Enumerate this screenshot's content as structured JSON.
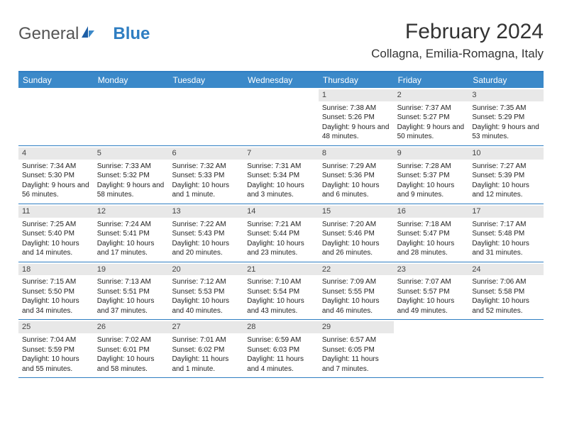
{
  "logo": {
    "general": "General",
    "blue": "Blue"
  },
  "title": "February 2024",
  "location": "Collagna, Emilia-Romagna, Italy",
  "colors": {
    "brand_blue": "#3b89c9",
    "border_blue": "#2f7ec2",
    "header_text": "#ffffff",
    "date_bg": "#e8e8e8",
    "body_text": "#222222"
  },
  "day_names": [
    "Sunday",
    "Monday",
    "Tuesday",
    "Wednesday",
    "Thursday",
    "Friday",
    "Saturday"
  ],
  "weeks": [
    [
      null,
      null,
      null,
      null,
      {
        "d": "1",
        "sr": "Sunrise: 7:38 AM",
        "ss": "Sunset: 5:26 PM",
        "dl": "Daylight: 9 hours and 48 minutes."
      },
      {
        "d": "2",
        "sr": "Sunrise: 7:37 AM",
        "ss": "Sunset: 5:27 PM",
        "dl": "Daylight: 9 hours and 50 minutes."
      },
      {
        "d": "3",
        "sr": "Sunrise: 7:35 AM",
        "ss": "Sunset: 5:29 PM",
        "dl": "Daylight: 9 hours and 53 minutes."
      }
    ],
    [
      {
        "d": "4",
        "sr": "Sunrise: 7:34 AM",
        "ss": "Sunset: 5:30 PM",
        "dl": "Daylight: 9 hours and 56 minutes."
      },
      {
        "d": "5",
        "sr": "Sunrise: 7:33 AM",
        "ss": "Sunset: 5:32 PM",
        "dl": "Daylight: 9 hours and 58 minutes."
      },
      {
        "d": "6",
        "sr": "Sunrise: 7:32 AM",
        "ss": "Sunset: 5:33 PM",
        "dl": "Daylight: 10 hours and 1 minute."
      },
      {
        "d": "7",
        "sr": "Sunrise: 7:31 AM",
        "ss": "Sunset: 5:34 PM",
        "dl": "Daylight: 10 hours and 3 minutes."
      },
      {
        "d": "8",
        "sr": "Sunrise: 7:29 AM",
        "ss": "Sunset: 5:36 PM",
        "dl": "Daylight: 10 hours and 6 minutes."
      },
      {
        "d": "9",
        "sr": "Sunrise: 7:28 AM",
        "ss": "Sunset: 5:37 PM",
        "dl": "Daylight: 10 hours and 9 minutes."
      },
      {
        "d": "10",
        "sr": "Sunrise: 7:27 AM",
        "ss": "Sunset: 5:39 PM",
        "dl": "Daylight: 10 hours and 12 minutes."
      }
    ],
    [
      {
        "d": "11",
        "sr": "Sunrise: 7:25 AM",
        "ss": "Sunset: 5:40 PM",
        "dl": "Daylight: 10 hours and 14 minutes."
      },
      {
        "d": "12",
        "sr": "Sunrise: 7:24 AM",
        "ss": "Sunset: 5:41 PM",
        "dl": "Daylight: 10 hours and 17 minutes."
      },
      {
        "d": "13",
        "sr": "Sunrise: 7:22 AM",
        "ss": "Sunset: 5:43 PM",
        "dl": "Daylight: 10 hours and 20 minutes."
      },
      {
        "d": "14",
        "sr": "Sunrise: 7:21 AM",
        "ss": "Sunset: 5:44 PM",
        "dl": "Daylight: 10 hours and 23 minutes."
      },
      {
        "d": "15",
        "sr": "Sunrise: 7:20 AM",
        "ss": "Sunset: 5:46 PM",
        "dl": "Daylight: 10 hours and 26 minutes."
      },
      {
        "d": "16",
        "sr": "Sunrise: 7:18 AM",
        "ss": "Sunset: 5:47 PM",
        "dl": "Daylight: 10 hours and 28 minutes."
      },
      {
        "d": "17",
        "sr": "Sunrise: 7:17 AM",
        "ss": "Sunset: 5:48 PM",
        "dl": "Daylight: 10 hours and 31 minutes."
      }
    ],
    [
      {
        "d": "18",
        "sr": "Sunrise: 7:15 AM",
        "ss": "Sunset: 5:50 PM",
        "dl": "Daylight: 10 hours and 34 minutes."
      },
      {
        "d": "19",
        "sr": "Sunrise: 7:13 AM",
        "ss": "Sunset: 5:51 PM",
        "dl": "Daylight: 10 hours and 37 minutes."
      },
      {
        "d": "20",
        "sr": "Sunrise: 7:12 AM",
        "ss": "Sunset: 5:53 PM",
        "dl": "Daylight: 10 hours and 40 minutes."
      },
      {
        "d": "21",
        "sr": "Sunrise: 7:10 AM",
        "ss": "Sunset: 5:54 PM",
        "dl": "Daylight: 10 hours and 43 minutes."
      },
      {
        "d": "22",
        "sr": "Sunrise: 7:09 AM",
        "ss": "Sunset: 5:55 PM",
        "dl": "Daylight: 10 hours and 46 minutes."
      },
      {
        "d": "23",
        "sr": "Sunrise: 7:07 AM",
        "ss": "Sunset: 5:57 PM",
        "dl": "Daylight: 10 hours and 49 minutes."
      },
      {
        "d": "24",
        "sr": "Sunrise: 7:06 AM",
        "ss": "Sunset: 5:58 PM",
        "dl": "Daylight: 10 hours and 52 minutes."
      }
    ],
    [
      {
        "d": "25",
        "sr": "Sunrise: 7:04 AM",
        "ss": "Sunset: 5:59 PM",
        "dl": "Daylight: 10 hours and 55 minutes."
      },
      {
        "d": "26",
        "sr": "Sunrise: 7:02 AM",
        "ss": "Sunset: 6:01 PM",
        "dl": "Daylight: 10 hours and 58 minutes."
      },
      {
        "d": "27",
        "sr": "Sunrise: 7:01 AM",
        "ss": "Sunset: 6:02 PM",
        "dl": "Daylight: 11 hours and 1 minute."
      },
      {
        "d": "28",
        "sr": "Sunrise: 6:59 AM",
        "ss": "Sunset: 6:03 PM",
        "dl": "Daylight: 11 hours and 4 minutes."
      },
      {
        "d": "29",
        "sr": "Sunrise: 6:57 AM",
        "ss": "Sunset: 6:05 PM",
        "dl": "Daylight: 11 hours and 7 minutes."
      },
      null,
      null
    ]
  ]
}
